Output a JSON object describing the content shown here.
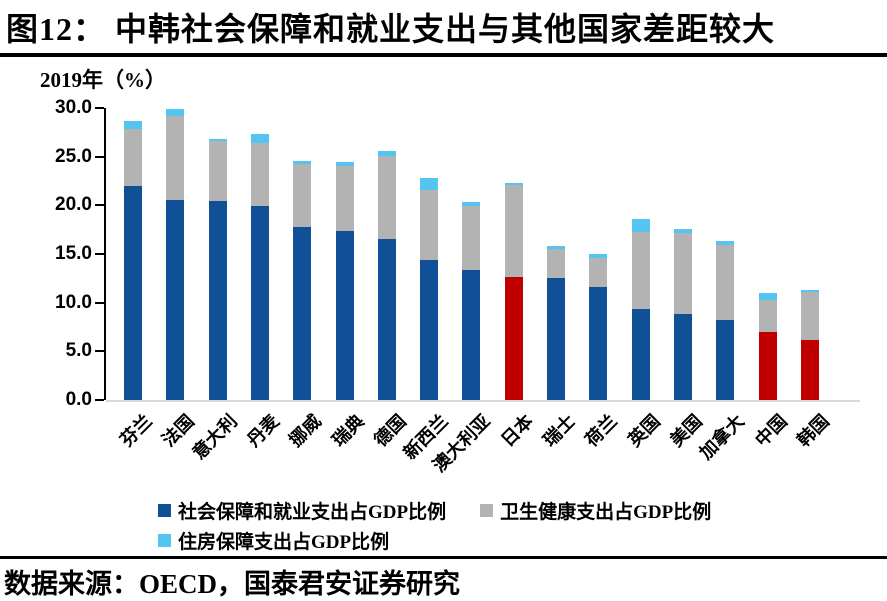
{
  "figure": {
    "title": "图12：  中韩社会保障和就业支出与其他国家差距较大",
    "source": "数据来源：OECD，国泰君安证券研究"
  },
  "chart_data": {
    "type": "bar",
    "stacked": true,
    "axis_title": "2019年（%）",
    "categories": [
      "芬兰",
      "法国",
      "意大利",
      "丹麦",
      "挪威",
      "瑞典",
      "德国",
      "新西兰",
      "澳大利亚",
      "日本",
      "瑞士",
      "荷兰",
      "英国",
      "美国",
      "加拿大",
      "中国",
      "韩国"
    ],
    "series": [
      {
        "name": "社会保障和就业支出占GDP比例",
        "color": "#0F5097",
        "values": [
          22.0,
          20.6,
          20.4,
          19.9,
          17.8,
          17.4,
          16.5,
          14.4,
          13.4,
          12.6,
          12.5,
          11.6,
          9.4,
          8.8,
          8.2,
          7.0,
          6.2
        ]
      },
      {
        "name": "卫生健康支出占GDP比例",
        "color": "#B3B3B3",
        "values": [
          5.8,
          8.6,
          6.2,
          6.5,
          6.4,
          6.6,
          8.6,
          7.2,
          6.5,
          9.5,
          3.0,
          3.0,
          7.9,
          8.4,
          7.7,
          3.3,
          4.9
        ]
      },
      {
        "name": "住房保障支出占GDP比例",
        "color": "#54C5F0",
        "values": [
          0.9,
          0.7,
          0.2,
          0.9,
          0.4,
          0.5,
          0.5,
          1.2,
          0.4,
          0.2,
          0.3,
          0.4,
          1.3,
          0.4,
          0.4,
          0.7,
          0.2
        ]
      }
    ],
    "highlight": {
      "series_index": 0,
      "color": "#C00000",
      "categories": [
        "日本",
        "中国",
        "韩国"
      ]
    },
    "ylim": [
      0,
      30
    ],
    "ytick_step": 5,
    "ytick_labels": [
      "30.0",
      "25.0",
      "20.0",
      "15.0",
      "10.0",
      "5.0",
      "0.0"
    ],
    "grid": false,
    "legend_position": "bottom"
  }
}
